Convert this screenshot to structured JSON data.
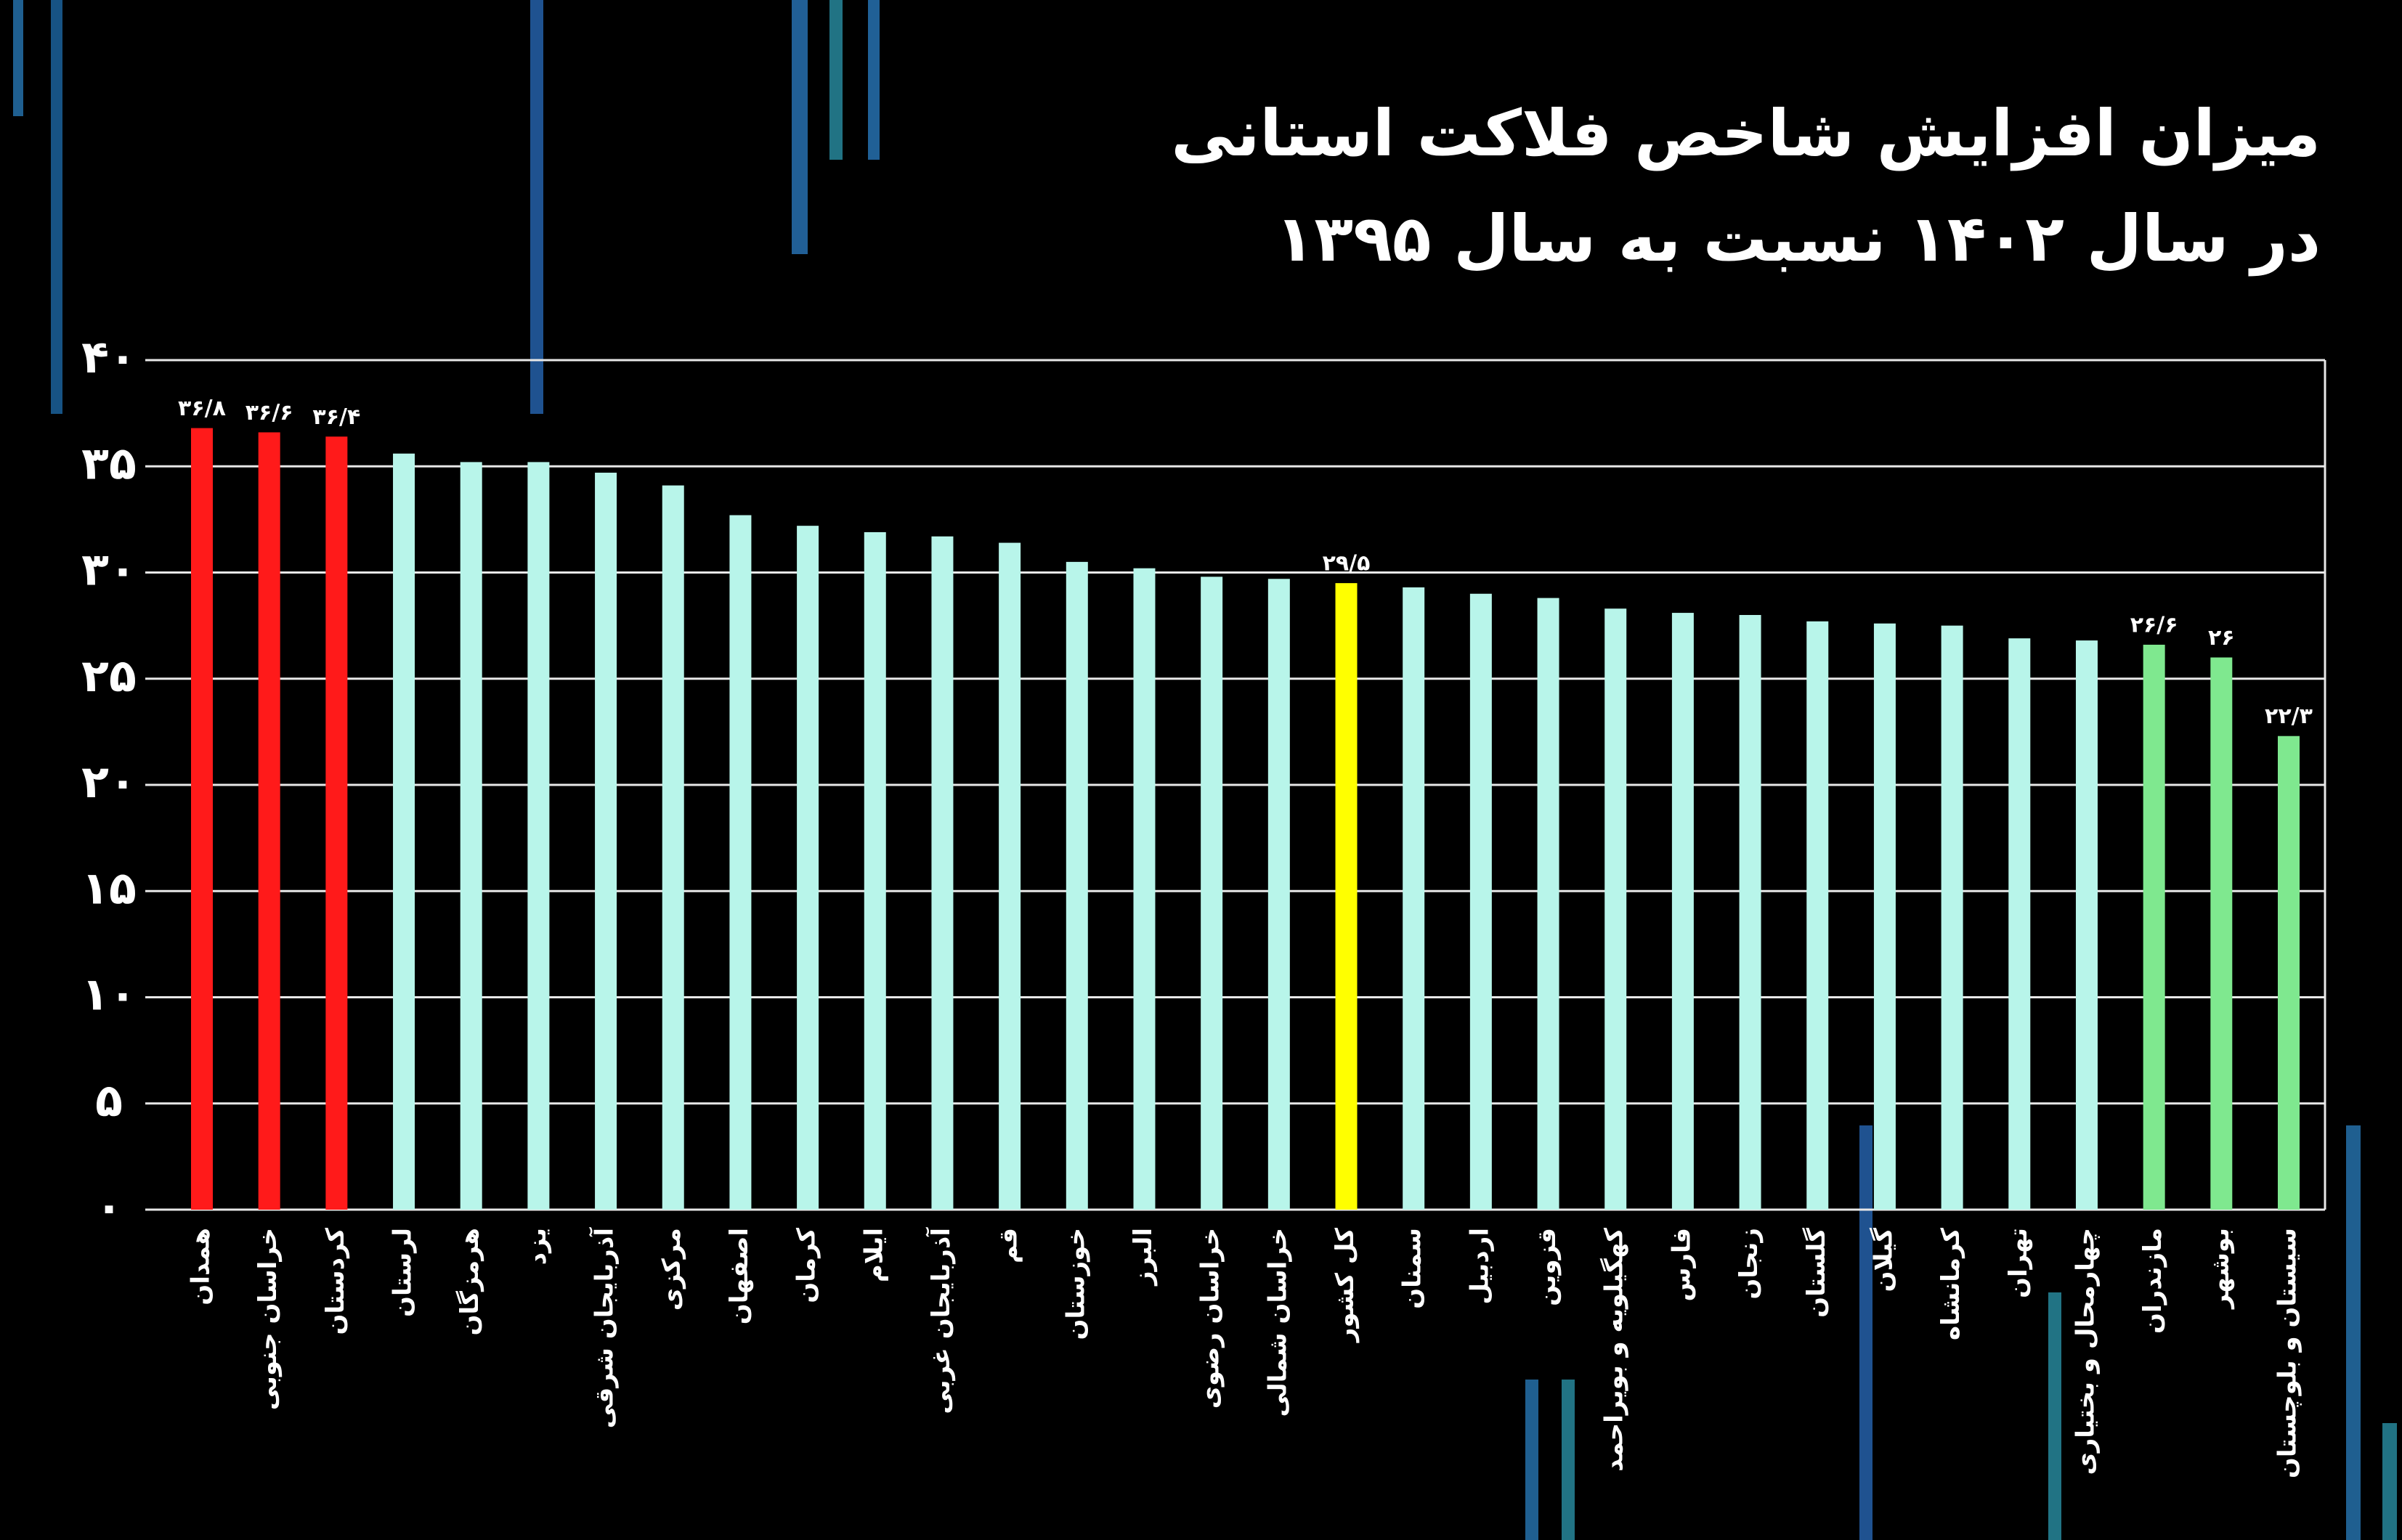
{
  "chart_data": {
    "type": "bar",
    "title": "میزان افزایش شاخص فلاکت استانی",
    "subtitle": "در سال ۱۴۰۲ نسبت به سال ۱۳۹۵",
    "categories": [
      "همدان",
      "خراسان جنوبی",
      "کردستان",
      "لرستان",
      "هرمزگان",
      "یزد",
      "آذربایجان شرقی",
      "مرکزی",
      "اصفهان",
      "کرمان",
      "ایلام",
      "آذربایجان غربی",
      "قم",
      "خوزستان",
      "البرز",
      "خراسان رضوی",
      "خراسان شمالی",
      "کل کشور",
      "سمنان",
      "اردبیل",
      "قزوین",
      "کهگیلویه و بویراحمد",
      "فارس",
      "زنجان",
      "گلستان",
      "گیلان",
      "کرمانشاه",
      "تهران",
      "چهارمحال و بختیاری",
      "مازندران",
      "بوشهر",
      "سیستان و بلوچستان"
    ],
    "values": [
      36.8,
      36.6,
      36.4,
      35.6,
      35.2,
      35.2,
      34.7,
      34.1,
      32.7,
      32.2,
      31.9,
      31.7,
      31.4,
      30.5,
      30.2,
      29.8,
      29.7,
      29.5,
      29.3,
      29.0,
      28.8,
      28.3,
      28.1,
      28.0,
      27.7,
      27.6,
      27.5,
      26.9,
      26.8,
      26.6,
      26,
      22.3
    ],
    "value_labels": [
      "۳۶/۸",
      "۳۶/۶",
      "۳۶/۴",
      null,
      null,
      null,
      null,
      null,
      null,
      null,
      null,
      null,
      null,
      null,
      null,
      null,
      null,
      "۲۹/۵",
      null,
      null,
      null,
      null,
      null,
      null,
      null,
      null,
      null,
      null,
      null,
      "۲۶/۶",
      "۲۶",
      "۲۲/۳"
    ],
    "colors": [
      "#ff1a1a",
      "#ff1a1a",
      "#ff1a1a",
      "#b8f5ea",
      "#b8f5ea",
      "#b8f5ea",
      "#b8f5ea",
      "#b8f5ea",
      "#b8f5ea",
      "#b8f5ea",
      "#b8f5ea",
      "#b8f5ea",
      "#b8f5ea",
      "#b8f5ea",
      "#b8f5ea",
      "#b8f5ea",
      "#b8f5ea",
      "#ffff00",
      "#b8f5ea",
      "#b8f5ea",
      "#b8f5ea",
      "#b8f5ea",
      "#b8f5ea",
      "#b8f5ea",
      "#b8f5ea",
      "#b8f5ea",
      "#b8f5ea",
      "#b8f5ea",
      "#b8f5ea",
      "#7fe88f",
      "#7fe88f",
      "#7fe88f"
    ],
    "ylim": [
      0,
      40
    ],
    "yticks": [
      {
        "value": 0,
        "label": "۰"
      },
      {
        "value": 5,
        "label": "۵"
      },
      {
        "value": 10,
        "label": "۱۰"
      },
      {
        "value": 15,
        "label": "۱۵"
      },
      {
        "value": 20,
        "label": "۲۰"
      },
      {
        "value": 25,
        "label": "۲۵"
      },
      {
        "value": 30,
        "label": "۳۰"
      },
      {
        "value": 35,
        "label": "۳۵"
      },
      {
        "value": 40,
        "label": "۴۰"
      }
    ],
    "grid": true
  }
}
